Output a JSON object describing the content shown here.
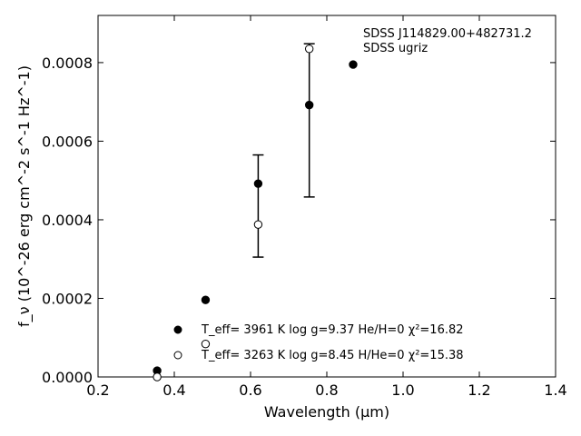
{
  "chart_data": {
    "type": "scatter",
    "xlabel": "Wavelength (μm)",
    "ylabel": "f_ν (10^-26 erg cm^-2 s^-1 Hz^-1)",
    "xlim": [
      0.2,
      1.4
    ],
    "ylim": [
      0.0,
      0.00092
    ],
    "xticks": [
      "0.2",
      "0.4",
      "0.6",
      "0.8",
      "1.0",
      "1.2",
      "1.4"
    ],
    "yticks": [
      "0.0000",
      "0.0002",
      "0.0004",
      "0.0006",
      "0.0008"
    ],
    "annotation_lines": [
      "SDSS J114829.00+482731.2",
      "SDSS ugriz"
    ],
    "legend_placement": "lower-center",
    "grid": false,
    "observed_errorbars": [
      {
        "x": 0.62,
        "ylow": 0.000305,
        "yhigh": 0.000565
      },
      {
        "x": 0.754,
        "ylow": 0.000458,
        "yhigh": 0.000848
      }
    ],
    "series": [
      {
        "legend_text": "T_eff=  3961 K  log g=9.37  He/H=0  χ²=16.82",
        "marker": "filled-circle",
        "x": [
          0.355,
          0.482,
          0.62,
          0.754,
          0.869
        ],
        "y": [
          1.6e-05,
          0.000196,
          0.000492,
          0.000692,
          0.000795
        ]
      },
      {
        "legend_text": "T_eff=  3263 K  log g=8.45  H/He=0  χ²=15.38",
        "marker": "open-circle",
        "x": [
          0.355,
          0.482,
          0.62,
          0.754
        ],
        "y": [
          0.0,
          8.4e-05,
          0.000388,
          0.000835
        ]
      }
    ]
  }
}
